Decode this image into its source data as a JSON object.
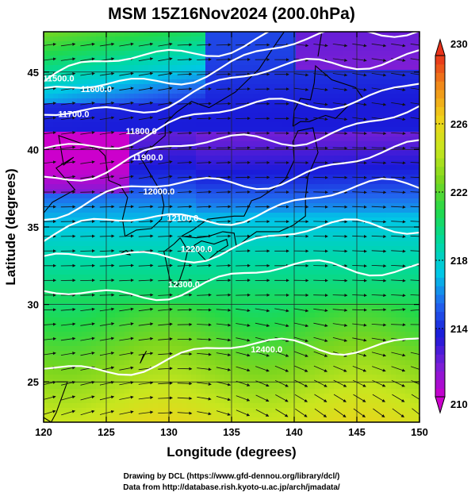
{
  "title": "MSM 15Z16Nov2024 (200.0hPa)",
  "xlabel": "Longitude (degrees)",
  "ylabel": "Latitude  (degrees)",
  "credit_line1": "Drawing by DCL (https://www.gfd-dennou.org/library/dcl/)",
  "credit_line2": "Data from http://database.rish.kyoto-u.ac.jp/arch/jmadata/",
  "chart_data": {
    "type": "heatmap",
    "title": "MSM 15Z16Nov2024 (200.0hPa)",
    "xlabel": "Longitude (degrees)",
    "ylabel": "Latitude  (degrees)",
    "xlim": [
      120,
      150
    ],
    "ylim": [
      22.4,
      47.6
    ],
    "x_ticks": [
      120,
      125,
      130,
      135,
      140,
      145,
      150
    ],
    "y_ticks": [
      25,
      30,
      35,
      40,
      45
    ],
    "colorbar": {
      "min": 210,
      "max": 230,
      "ticks": [
        210,
        214,
        218,
        222,
        226,
        230
      ],
      "colors": [
        "#cc00cc",
        "#7a1fd6",
        "#1a1ad9",
        "#2266ee",
        "#00c8e6",
        "#00d9a0",
        "#22d94a",
        "#7cd61e",
        "#c8e61e",
        "#f0d21a",
        "#f08c1a",
        "#e8321a"
      ]
    },
    "contours": [
      {
        "label": "11500.0",
        "lon": 121.2,
        "lat": 44.6
      },
      {
        "label": "11600.0",
        "lon": 124.2,
        "lat": 43.9
      },
      {
        "label": "11700.0",
        "lon": 122.4,
        "lat": 42.3
      },
      {
        "label": "11800.0",
        "lon": 127.8,
        "lat": 41.2
      },
      {
        "label": "11900.0",
        "lon": 128.3,
        "lat": 39.5
      },
      {
        "label": "12000.0",
        "lon": 129.2,
        "lat": 37.3
      },
      {
        "label": "12100.0",
        "lon": 131.1,
        "lat": 35.6
      },
      {
        "label": "12200.0",
        "lon": 132.2,
        "lat": 33.6
      },
      {
        "label": "12300.0",
        "lon": 131.2,
        "lat": 31.3
      },
      {
        "label": "12400.0",
        "lon": 137.8,
        "lat": 27.1
      }
    ]
  }
}
